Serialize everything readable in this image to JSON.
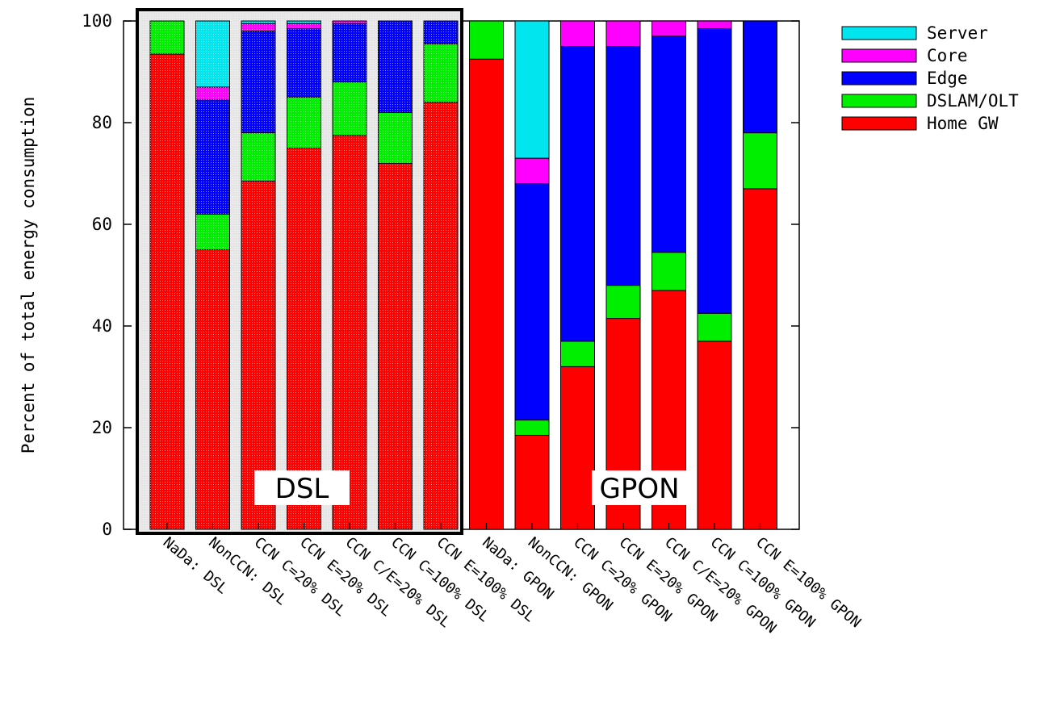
{
  "chart_data": {
    "type": "bar",
    "stacked": true,
    "ylabel": "Percent of total energy consumption",
    "xlabel": "",
    "ylim": [
      0,
      100
    ],
    "yticks": [
      0,
      20,
      40,
      60,
      80,
      100
    ],
    "grid": false,
    "legend_position": "top-right",
    "categories": [
      "NaDa: DSL",
      "NonCCN: DSL",
      "CCN C=20% DSL",
      "CCN E=20% DSL",
      "CCN C/E=20% DSL",
      "CCN C=100% DSL",
      "CCN E=100% DSL",
      "NaDa: GPON",
      "NonCCN: GPON",
      "CCN C=20% GPON",
      "CCN E=20% GPON",
      "CCN C/E=20% GPON",
      "CCN C=100% GPON",
      "CCN E=100% GPON"
    ],
    "series": [
      {
        "name": "Home GW",
        "color": "#ff0000",
        "values": [
          93.5,
          55,
          68.5,
          75,
          77.5,
          72,
          84,
          92.5,
          18.5,
          32,
          41.5,
          47,
          37,
          67
        ]
      },
      {
        "name": "DSLAM/OLT",
        "color": "#00ee00",
        "values": [
          6.5,
          7,
          9.5,
          10,
          10.5,
          10,
          11.5,
          7.5,
          3,
          5,
          6.5,
          7.5,
          5.5,
          11
        ]
      },
      {
        "name": "Edge",
        "color": "#0000ff",
        "values": [
          0,
          22.5,
          20,
          13.5,
          11.5,
          18,
          4.5,
          0,
          46.5,
          58,
          47,
          42.5,
          56,
          22
        ]
      },
      {
        "name": "Core",
        "color": "#ff00ff",
        "values": [
          0,
          2.5,
          1.5,
          1,
          0.5,
          0,
          0,
          0,
          5,
          5,
          5,
          3,
          1.5,
          0
        ]
      },
      {
        "name": "Server",
        "color": "#00e5ee",
        "values": [
          0,
          13,
          0.5,
          0.5,
          0,
          0,
          0,
          0,
          27,
          0,
          0,
          0,
          0,
          0
        ]
      }
    ],
    "legend": [
      "Server",
      "Core",
      "Edge",
      "DSLAM/OLT",
      "Home GW"
    ],
    "group_labels": [
      "DSL",
      "GPON"
    ]
  }
}
